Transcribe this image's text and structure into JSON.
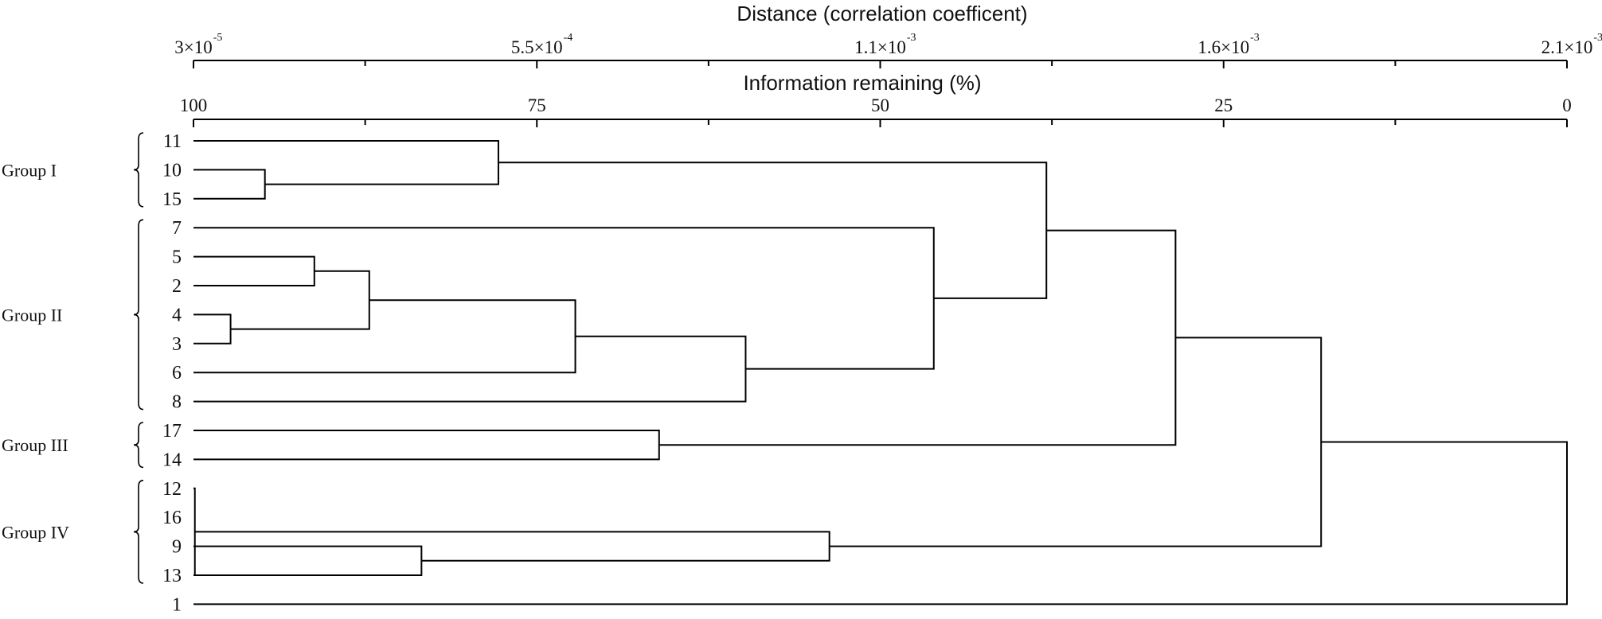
{
  "top_axis": {
    "title": "Distance (correlation coefficent)",
    "ticks": [
      {
        "mant": "3×10",
        "exp": "-5"
      },
      {
        "mant": "5.5×10",
        "exp": "-4"
      },
      {
        "mant": "1.1×10",
        "exp": "-3"
      },
      {
        "mant": "1.6×10",
        "exp": "-3"
      },
      {
        "mant": "2.1×10",
        "exp": "-3"
      }
    ]
  },
  "bottom_axis": {
    "title": "Information remaining (%)",
    "ticks": [
      "100",
      "75",
      "50",
      "25",
      "0"
    ]
  },
  "leaves": [
    "11",
    "10",
    "15",
    "7",
    "5",
    "2",
    "4",
    "3",
    "6",
    "8",
    "17",
    "14",
    "12",
    "16",
    "9",
    "13",
    "1"
  ],
  "groups": [
    {
      "label": "Group I",
      "first_leaf": 0,
      "last_leaf": 2
    },
    {
      "label": "Group II",
      "first_leaf": 3,
      "last_leaf": 9
    },
    {
      "label": "Group III",
      "first_leaf": 10,
      "last_leaf": 11
    },
    {
      "label": "Group IV",
      "first_leaf": 12,
      "last_leaf": 15
    }
  ],
  "merges": [
    {
      "a": "L12",
      "b": "L13",
      "info": 99.9
    },
    {
      "a": "L4",
      "b": "L3",
      "info": 97.3
    },
    {
      "a": "L10",
      "b": "L15",
      "info": 94.8
    },
    {
      "a": "L5",
      "b": "L2",
      "info": 91.2
    },
    {
      "a": "M3",
      "b": "M1",
      "info": 87.2
    },
    {
      "a": "L9",
      "b": "L13",
      "info": 83.4
    },
    {
      "a": "L11",
      "b": "M2",
      "info": 77.8
    },
    {
      "a": "M4",
      "b": "L6",
      "info": 72.2
    },
    {
      "a": "L17",
      "b": "L14",
      "info": 66.1
    },
    {
      "a": "M7",
      "b": "L8",
      "info": 59.8
    },
    {
      "a": "M0",
      "b": "M5",
      "info": 53.7
    },
    {
      "a": "L7",
      "b": "M9",
      "info": 46.1
    },
    {
      "a": "M6",
      "b": "M11",
      "info": 37.9
    },
    {
      "a": "M12",
      "b": "M8",
      "info": 28.5
    },
    {
      "a": "M13",
      "b": "M10",
      "info": 17.9
    },
    {
      "a": "M14",
      "b": "L1",
      "info": 0
    }
  ]
}
